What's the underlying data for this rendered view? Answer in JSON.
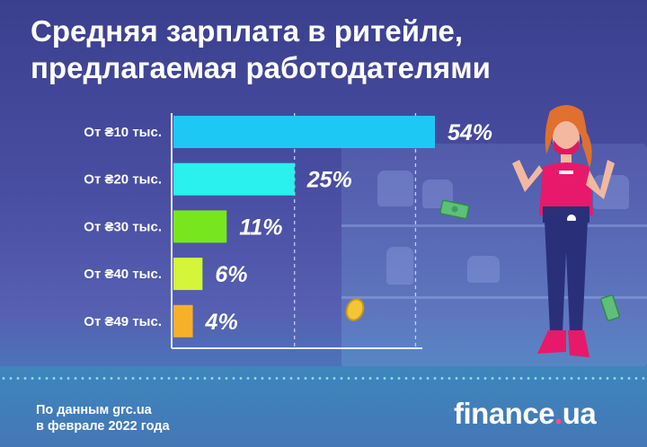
{
  "title": {
    "line1": "Средняя зарплата в ритейле,",
    "line2": "предлагаемая работодателями"
  },
  "source": {
    "line1": "По данным grc.ua",
    "line2": "в феврале 2022 года"
  },
  "logo": {
    "text": "finance",
    "dot": ".",
    "suffix": "ua"
  },
  "chart_data": {
    "type": "bar",
    "orientation": "horizontal",
    "categories": [
      "От ₴10 тыс.",
      "От ₴20 тыс.",
      "От ₴30 тыс.",
      "От ₴40 тыс.",
      "От ₴49 тыс."
    ],
    "values": [
      54,
      25,
      11,
      6,
      4
    ],
    "value_labels": [
      "54%",
      "25%",
      "11%",
      "6%",
      "4%"
    ],
    "colors": [
      "#1ec8f5",
      "#2af0ee",
      "#78e61e",
      "#d4f53a",
      "#f7b02a"
    ],
    "xlim": [
      0,
      60
    ],
    "grid_at": [
      25,
      50
    ]
  }
}
